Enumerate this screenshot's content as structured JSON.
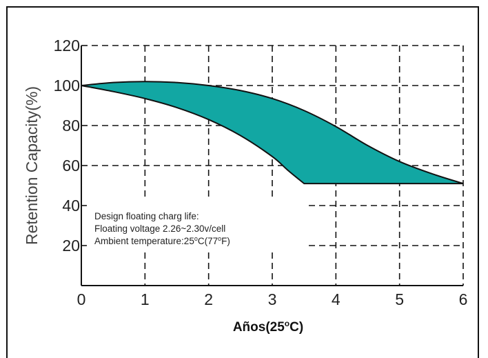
{
  "chart_data": {
    "type": "area",
    "ylabel": "Retention Capacity(%)",
    "xlabel": "Años(25°C)",
    "xlim": [
      0,
      6
    ],
    "ylim": [
      0,
      120
    ],
    "x_ticks": [
      "0",
      "1",
      "2",
      "3",
      "4",
      "5",
      "6"
    ],
    "y_ticks": [
      "20",
      "40",
      "60",
      "80",
      "100",
      "120"
    ],
    "y_tick_values": [
      20,
      40,
      60,
      80,
      100,
      120
    ],
    "grid": true,
    "fill_color": "#12a7a3",
    "series": [
      {
        "role": "upper",
        "x": [
          0,
          0.5,
          1,
          1.5,
          2,
          2.5,
          3,
          3.5,
          4,
          4.5,
          5,
          5.5,
          6
        ],
        "y": [
          100,
          101.5,
          102,
          101.5,
          100,
          97.5,
          93.5,
          87.5,
          79.5,
          70,
          62,
          56,
          51
        ]
      },
      {
        "role": "lower",
        "x": [
          0,
          0.5,
          1,
          1.5,
          2,
          2.5,
          3,
          3.25,
          3.5,
          4,
          5,
          6
        ],
        "y": [
          100,
          97,
          93.5,
          89,
          83,
          75,
          64.5,
          57.5,
          51,
          51,
          51,
          51
        ]
      }
    ],
    "annotation": [
      "Design floating charg life:",
      "Floating voltage 2.26~2.30v/cell",
      "Ambient temperature:25°C(77°F)"
    ]
  }
}
